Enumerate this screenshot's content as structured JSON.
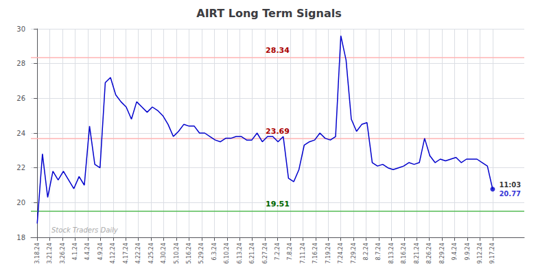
{
  "chart_data": {
    "type": "line",
    "title": "AIRT Long Term Signals",
    "color": "#0000cc",
    "x": [
      0,
      0.413793,
      0.827586,
      1.241379,
      1.655172,
      2.068966,
      2.482759,
      2.896552,
      3.310345,
      3.724138,
      4.137931,
      4.551724,
      4.965517,
      5.37931,
      5.793103,
      6.206897,
      6.62069,
      7.034483,
      7.448276,
      7.862069,
      8.275862,
      8.689655,
      9.103448,
      9.517241,
      9.931034,
      10.344828,
      10.758621,
      11.172414,
      11.586207,
      12,
      12.413793,
      12.827586,
      13.241379,
      13.655172,
      14.068966,
      14.482759,
      14.896552,
      15.310345,
      15.724138,
      16.137931,
      16.551724,
      16.965517,
      17.37931,
      17.793103,
      18.206897,
      18.62069,
      19.034483,
      19.448276,
      19.862069,
      20.275862,
      20.689655,
      21.103448,
      21.517241,
      21.931034,
      22.344828,
      22.758621,
      23.172414,
      23.586207,
      24,
      24.413793,
      24.827586,
      25.241379,
      25.655172,
      26.068966,
      26.482759,
      26.896552,
      27.310345,
      27.724138,
      28.137931,
      28.551724,
      28.965517,
      29.37931,
      29.793103,
      30.206897,
      30.62069,
      31.034483,
      31.448276,
      31.862069,
      32.275862,
      32.689655,
      33.103448,
      33.517241,
      33.931034,
      34.344828,
      34.758621,
      35.172414,
      35.586207,
      36
    ],
    "values": [
      18.8,
      22.8,
      20.3,
      21.8,
      21.3,
      21.8,
      21.3,
      20.8,
      21.5,
      21.0,
      24.4,
      22.2,
      22.0,
      26.9,
      27.2,
      26.2,
      25.8,
      25.5,
      24.8,
      25.8,
      25.5,
      25.2,
      25.5,
      25.3,
      25.0,
      24.5,
      23.8,
      24.1,
      24.5,
      24.4,
      24.4,
      24.0,
      24.0,
      23.8,
      23.6,
      23.5,
      23.7,
      23.7,
      23.8,
      23.8,
      23.6,
      23.6,
      24.0,
      23.5,
      23.8,
      23.8,
      23.5,
      23.8,
      21.4,
      21.2,
      21.9,
      23.3,
      23.5,
      23.6,
      24.0,
      23.7,
      23.6,
      23.8,
      29.6,
      28.2,
      24.8,
      24.1,
      24.5,
      24.6,
      22.3,
      22.1,
      22.2,
      22.0,
      21.9,
      22.0,
      22.1,
      22.3,
      22.2,
      22.3,
      23.7,
      22.7,
      22.3,
      22.5,
      22.4,
      22.5,
      22.6,
      22.3,
      22.5,
      22.5,
      22.5,
      22.3,
      22.1,
      20.77
    ],
    "xlim": [
      -0.5,
      38.5
    ],
    "xticks": [
      {
        "value": 0,
        "label": "3.18.24"
      },
      {
        "value": 1,
        "label": "3.21.24"
      },
      {
        "value": 2,
        "label": "3.26.24"
      },
      {
        "value": 3,
        "label": "4.1.24"
      },
      {
        "value": 4,
        "label": "4.4.24"
      },
      {
        "value": 5,
        "label": "4.9.24"
      },
      {
        "value": 6,
        "label": "4.12.24"
      },
      {
        "value": 7,
        "label": "4.17.24"
      },
      {
        "value": 8,
        "label": "4.22.24"
      },
      {
        "value": 9,
        "label": "4.25.24"
      },
      {
        "value": 10,
        "label": "4.30.24"
      },
      {
        "value": 11,
        "label": "5.10.24"
      },
      {
        "value": 12,
        "label": "5.16.24"
      },
      {
        "value": 13,
        "label": "5.29.24"
      },
      {
        "value": 14,
        "label": "6.3.24"
      },
      {
        "value": 15,
        "label": "6.10.24"
      },
      {
        "value": 16,
        "label": "6.13.24"
      },
      {
        "value": 17,
        "label": "6.21.24"
      },
      {
        "value": 18,
        "label": "6.27.24"
      },
      {
        "value": 19,
        "label": "7.2.24"
      },
      {
        "value": 20,
        "label": "7.8.24"
      },
      {
        "value": 21,
        "label": "7.11.24"
      },
      {
        "value": 22,
        "label": "7.16.24"
      },
      {
        "value": 23,
        "label": "7.19.24"
      },
      {
        "value": 24,
        "label": "7.24.24"
      },
      {
        "value": 25,
        "label": "7.29.24"
      },
      {
        "value": 26,
        "label": "8.2.24"
      },
      {
        "value": 27,
        "label": "8.7.24"
      },
      {
        "value": 28,
        "label": "8.13.24"
      },
      {
        "value": 29,
        "label": "8.16.24"
      },
      {
        "value": 30,
        "label": "8.21.24"
      },
      {
        "value": 31,
        "label": "8.26.24"
      },
      {
        "value": 32,
        "label": "8.29.24"
      },
      {
        "value": 33,
        "label": "9.4.24"
      },
      {
        "value": 34,
        "label": "9.9.24"
      },
      {
        "value": 35,
        "label": "9.12.24"
      },
      {
        "value": 36,
        "label": "9.17.24"
      }
    ],
    "ylim": [
      18,
      30
    ],
    "yticks": [
      18,
      20,
      22,
      24,
      26,
      28,
      30
    ],
    "grid": true,
    "reference_lines": [
      {
        "value": 28.34,
        "label": "28.34",
        "color": "#ffb3b3",
        "label_color": "#aa0000"
      },
      {
        "value": 23.69,
        "label": "23.69",
        "color": "#ffb3b3",
        "label_color": "#aa0000"
      },
      {
        "value": 19.51,
        "label": "19.51",
        "color": "#55bb55",
        "label_color": "#006600"
      }
    ],
    "last_point_label": {
      "text": "11:03",
      "color": "#000000",
      "value_color": "#0000cc"
    },
    "watermark": {
      "text": "Stock Traders Daily",
      "color": "#aaaaaa"
    }
  }
}
